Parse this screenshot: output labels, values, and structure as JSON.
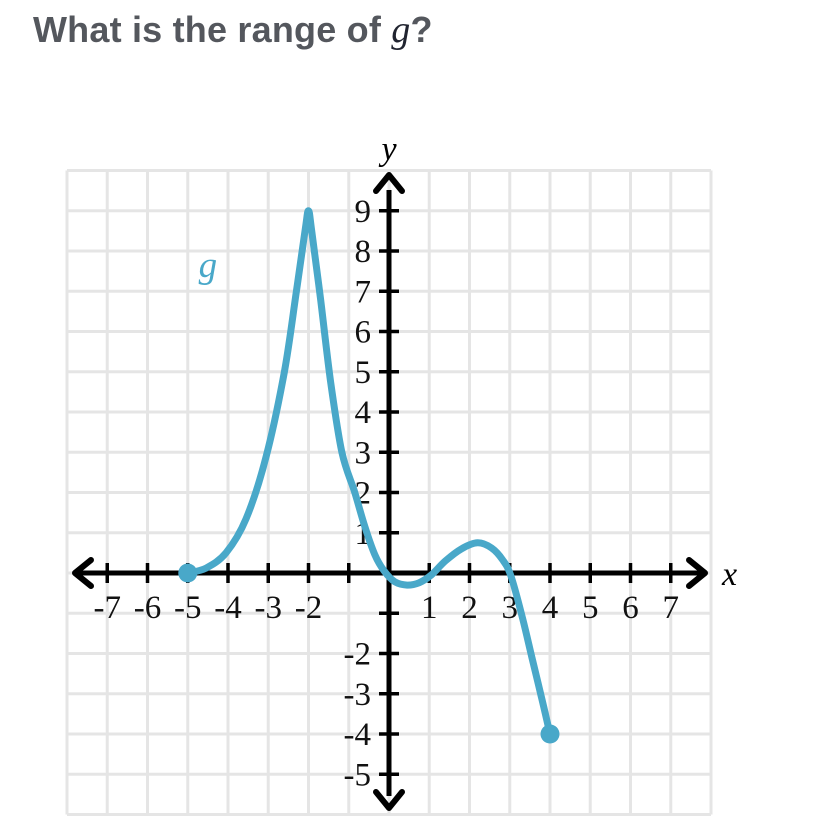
{
  "question": {
    "prefix": "What is the range of ",
    "func": "g",
    "suffix": "?"
  },
  "colors": {
    "curve": "#49a8c9",
    "axis": "#000000",
    "grid": "#e5e5e5",
    "tick_label": "#111111",
    "title_text": "#54575d",
    "math_text": "#212430",
    "background": "#ffffff"
  },
  "chart_data": {
    "type": "line",
    "title": "",
    "xlabel": "x",
    "ylabel": "y",
    "grid": true,
    "xlim": [
      -8,
      8
    ],
    "ylim": [
      -6,
      10
    ],
    "x_ticks": [
      -7,
      -6,
      -5,
      -4,
      -3,
      -2,
      -1,
      1,
      2,
      3,
      4,
      5,
      6,
      7
    ],
    "y_ticks": [
      -5,
      -4,
      -3,
      -2,
      -1,
      1,
      2,
      3,
      4,
      5,
      6,
      7,
      8,
      9
    ],
    "x_tick_labels": [
      {
        "v": -7,
        "label": "-7"
      },
      {
        "v": -6,
        "label": "-6"
      },
      {
        "v": -5,
        "label": "-5"
      },
      {
        "v": -4,
        "label": "-4"
      },
      {
        "v": -3,
        "label": "-3"
      },
      {
        "v": -2,
        "label": "-2"
      },
      {
        "v": 1,
        "label": "1"
      },
      {
        "v": 2,
        "label": "2"
      },
      {
        "v": 3,
        "label": "3"
      },
      {
        "v": 4,
        "label": "4"
      },
      {
        "v": 5,
        "label": "5"
      },
      {
        "v": 6,
        "label": "6"
      },
      {
        "v": 7,
        "label": "7"
      }
    ],
    "y_tick_labels": [
      {
        "v": 9,
        "label": "9"
      },
      {
        "v": 8,
        "label": "8"
      },
      {
        "v": 7,
        "label": "7"
      },
      {
        "v": 6,
        "label": "6"
      },
      {
        "v": 5,
        "label": "5"
      },
      {
        "v": 4,
        "label": "4"
      },
      {
        "v": 3,
        "label": "3"
      },
      {
        "v": 2,
        "label": "2"
      },
      {
        "v": 1,
        "label": "1"
      },
      {
        "v": -2,
        "label": "-2"
      },
      {
        "v": -3,
        "label": "-3"
      },
      {
        "v": -4,
        "label": "-4"
      },
      {
        "v": -5,
        "label": "-5"
      }
    ],
    "series": [
      {
        "name": "g",
        "color": "#49a8c9",
        "label": "g",
        "label_pos": [
          -4.5,
          7.35
        ],
        "endpoints_closed": [
          [
            -5,
            0
          ],
          [
            4,
            -4
          ]
        ],
        "key_points": {
          "start_closed": [
            -5,
            0
          ],
          "peak": [
            -2,
            9
          ],
          "local_min": [
            0.45,
            -0.3
          ],
          "local_max": [
            2.2,
            0.75
          ],
          "end_closed": [
            4,
            -4
          ]
        },
        "points": [
          [
            -5,
            0
          ],
          [
            -4.55,
            0.12
          ],
          [
            -4.05,
            0.5
          ],
          [
            -3.55,
            1.35
          ],
          [
            -3.05,
            2.9
          ],
          [
            -2.6,
            5
          ],
          [
            -2.3,
            7
          ],
          [
            -2.08,
            8.55
          ],
          [
            -2,
            9
          ],
          [
            -1.92,
            8.5
          ],
          [
            -1.7,
            6.8
          ],
          [
            -1.45,
            4.75
          ],
          [
            -1.17,
            3
          ],
          [
            -0.85,
            2
          ],
          [
            -0.6,
            1.15
          ],
          [
            -0.35,
            0.45
          ],
          [
            -0.12,
            0.05
          ],
          [
            0.15,
            -0.22
          ],
          [
            0.45,
            -0.3
          ],
          [
            0.75,
            -0.24
          ],
          [
            1.05,
            -0.05
          ],
          [
            1.4,
            0.3
          ],
          [
            1.8,
            0.6
          ],
          [
            2.2,
            0.75
          ],
          [
            2.55,
            0.62
          ],
          [
            2.82,
            0.33
          ],
          [
            3.02,
            -0.05
          ],
          [
            3.3,
            -1.05
          ],
          [
            3.55,
            -2.1
          ],
          [
            3.78,
            -3.05
          ],
          [
            4,
            -4
          ]
        ]
      }
    ]
  }
}
